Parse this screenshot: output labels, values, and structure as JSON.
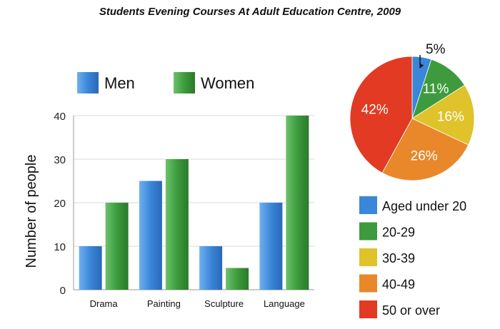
{
  "chart_data": [
    {
      "type": "bar",
      "title": "Students Evening Courses At Adult Education Centre, 2009",
      "xlabel": "",
      "ylabel": "Number of people",
      "categories": [
        "Drama",
        "Painting",
        "Sculpture",
        "Language"
      ],
      "series": [
        {
          "name": "Men",
          "values": [
            10,
            25,
            10,
            20
          ],
          "color": "#3a86d8"
        },
        {
          "name": "Women",
          "values": [
            20,
            30,
            5,
            40
          ],
          "color": "#3d9b3d"
        }
      ],
      "ylim": [
        0,
        40
      ],
      "yticks": [
        "0",
        "10",
        "20",
        "30",
        "40"
      ],
      "grid": true,
      "legend": "top"
    },
    {
      "type": "pie",
      "slices": [
        {
          "label": "Aged under 20",
          "value": 5,
          "display": "5%",
          "color": "#3a86d8"
        },
        {
          "label": "20-29",
          "value": 11,
          "display": "11%",
          "color": "#3d9b3d"
        },
        {
          "label": "30-39",
          "value": 16,
          "display": "16%",
          "color": "#e0c22a"
        },
        {
          "label": "40-49",
          "value": 26,
          "display": "26%",
          "color": "#e8882a"
        },
        {
          "label": "50 or over",
          "value": 42,
          "display": "42%",
          "color": "#e23a23"
        }
      ],
      "legend": "bottom-right"
    }
  ]
}
